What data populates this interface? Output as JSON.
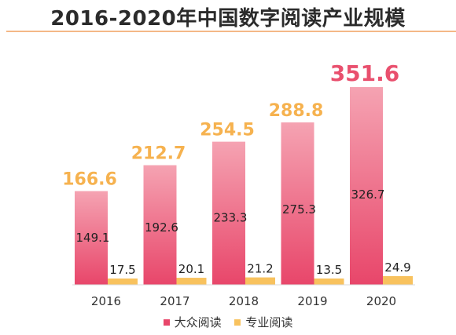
{
  "chart_data": {
    "type": "bar",
    "title": "2016-2020年中国数字阅读产业规模",
    "categories": [
      "2016",
      "2017",
      "2018",
      "2019",
      "2020"
    ],
    "totals": [
      166.6,
      212.7,
      254.5,
      288.8,
      351.6
    ],
    "series": [
      {
        "name": "大众阅读",
        "values": [
          149.1,
          192.6,
          233.3,
          275.3,
          326.7
        ]
      },
      {
        "name": "专业阅读",
        "values": [
          17.5,
          20.1,
          21.2,
          13.5,
          24.9
        ]
      }
    ],
    "ylim": [
      0,
      360
    ],
    "legend": "bottom",
    "grid": false
  },
  "colors": {
    "mass_top": "#f5a3b2",
    "mass_bottom": "#e8466a",
    "pro": "#f8c25e",
    "total_label": "#f6b24f",
    "total_label_max": "#e9506e",
    "value_label": "#222222"
  }
}
